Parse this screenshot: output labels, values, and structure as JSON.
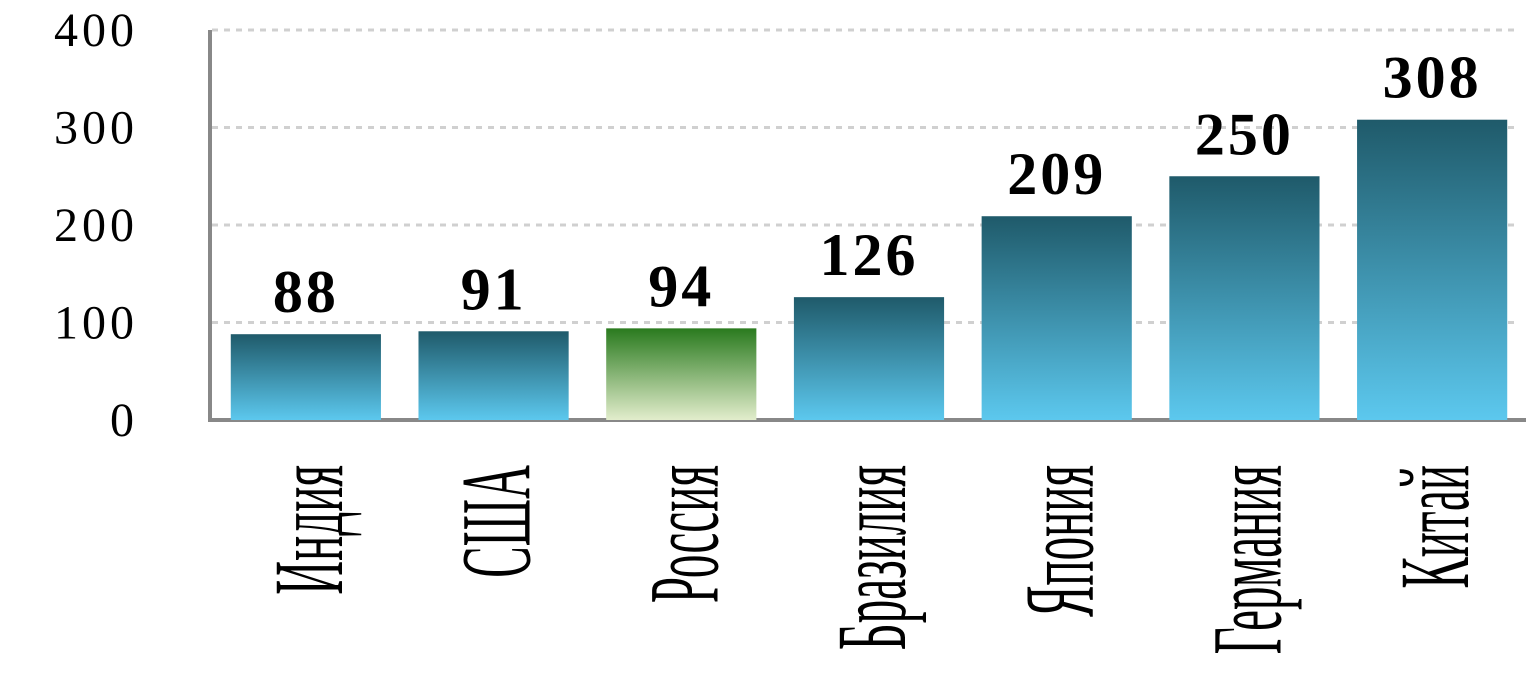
{
  "chart_data": {
    "type": "bar",
    "categories": [
      "Индия",
      "США",
      "Россия",
      "Бразилия",
      "Япония",
      "Германия",
      "Китай"
    ],
    "values": [
      88,
      91,
      94,
      126,
      209,
      250,
      308
    ],
    "colors": [
      "#1f5a6a",
      "#1f5a6a",
      "#2a7a1e",
      "#1f5a6a",
      "#1f5a6a",
      "#1f5a6a",
      "#1f5a6a"
    ],
    "gradient_end_colors": [
      "#5cc8ee",
      "#5cc8ee",
      "#e2edcc",
      "#5cc8ee",
      "#5cc8ee",
      "#5cc8ee",
      "#5cc8ee"
    ],
    "ylim": [
      0,
      400
    ],
    "yticks": [
      0,
      100,
      200,
      300,
      400
    ],
    "grid": true
  }
}
